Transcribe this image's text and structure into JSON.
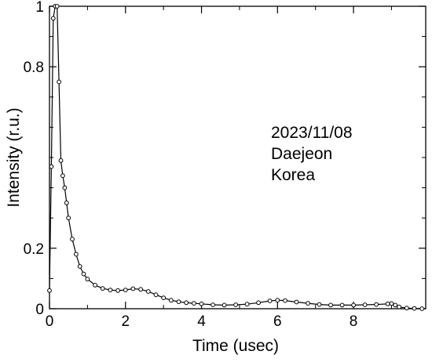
{
  "chart_data": {
    "type": "scatter",
    "title": "",
    "xlabel": "Time (usec)",
    "ylabel": "Intensity (r.u.)",
    "xlim": [
      0,
      9.9
    ],
    "ylim": [
      0,
      1.0
    ],
    "x_ticks": [
      0,
      2,
      4,
      6,
      8
    ],
    "y_ticks": [
      0,
      0.2,
      0.8,
      1
    ],
    "y_tick_labels": [
      "0",
      "0.2",
      "0.8",
      "1"
    ],
    "grid": false,
    "annotations": [
      "2023/11/08",
      "Daejeon",
      "Korea"
    ],
    "series": [
      {
        "marker": "open-circle",
        "line": true,
        "points": [
          [
            0.0,
            0.06
          ],
          [
            0.05,
            0.47
          ],
          [
            0.1,
            0.96
          ],
          [
            0.15,
            1.0
          ],
          [
            0.2,
            1.0
          ],
          [
            0.25,
            0.75
          ],
          [
            0.3,
            0.49
          ],
          [
            0.35,
            0.44
          ],
          [
            0.4,
            0.4
          ],
          [
            0.45,
            0.35
          ],
          [
            0.5,
            0.3
          ],
          [
            0.6,
            0.23
          ],
          [
            0.7,
            0.18
          ],
          [
            0.8,
            0.14
          ],
          [
            0.9,
            0.115
          ],
          [
            1.0,
            0.098
          ],
          [
            1.2,
            0.078
          ],
          [
            1.4,
            0.067
          ],
          [
            1.6,
            0.062
          ],
          [
            1.8,
            0.06
          ],
          [
            2.0,
            0.062
          ],
          [
            2.2,
            0.066
          ],
          [
            2.4,
            0.064
          ],
          [
            2.6,
            0.057
          ],
          [
            2.8,
            0.046
          ],
          [
            3.0,
            0.036
          ],
          [
            3.2,
            0.028
          ],
          [
            3.4,
            0.023
          ],
          [
            3.6,
            0.02
          ],
          [
            3.8,
            0.018
          ],
          [
            4.0,
            0.016
          ],
          [
            4.3,
            0.013
          ],
          [
            4.6,
            0.012
          ],
          [
            4.9,
            0.013
          ],
          [
            5.2,
            0.015
          ],
          [
            5.5,
            0.02
          ],
          [
            5.8,
            0.026
          ],
          [
            6.0,
            0.028
          ],
          [
            6.2,
            0.027
          ],
          [
            6.5,
            0.022
          ],
          [
            6.8,
            0.018
          ],
          [
            7.1,
            0.014
          ],
          [
            7.4,
            0.012
          ],
          [
            7.7,
            0.012
          ],
          [
            8.0,
            0.012
          ],
          [
            8.3,
            0.013
          ],
          [
            8.6,
            0.014
          ],
          [
            8.9,
            0.016
          ],
          [
            9.0,
            0.017
          ],
          [
            9.1,
            0.012
          ],
          [
            9.2,
            0.006
          ],
          [
            9.4,
            0.002
          ],
          [
            9.6,
            0.001
          ],
          [
            9.8,
            0.0
          ]
        ]
      }
    ]
  }
}
